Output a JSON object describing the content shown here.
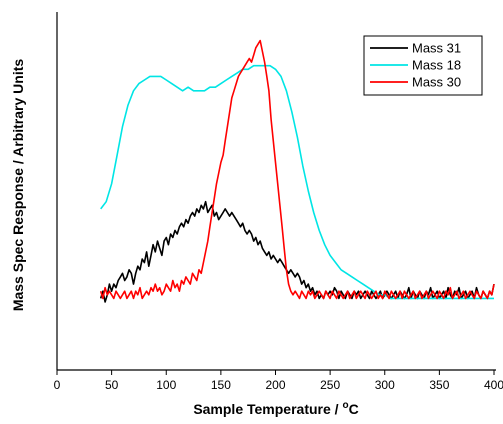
{
  "chart_data": {
    "type": "line",
    "xlabel": "Sample Temperature / °C",
    "xlabel_parts": {
      "pre": "Sample Temperature / ",
      "sup": "o",
      "post": "C"
    },
    "ylabel": "Mass Spec Response / Arbitrary Units",
    "xlim": [
      0,
      400
    ],
    "ylim": [
      0,
      100
    ],
    "xticks": [
      "0",
      "50",
      "100",
      "150",
      "200",
      "250",
      "300",
      "350",
      "400"
    ],
    "y_tick_labels_shown": false,
    "grid": false,
    "legend_position": "top-right",
    "series": [
      {
        "name": "Mass 31",
        "color": "#000000",
        "x": [
          40,
          42,
          44,
          46,
          48,
          50,
          52,
          54,
          56,
          58,
          60,
          62,
          64,
          66,
          68,
          70,
          72,
          74,
          76,
          78,
          80,
          82,
          84,
          86,
          88,
          90,
          92,
          94,
          96,
          98,
          100,
          102,
          104,
          106,
          108,
          110,
          112,
          114,
          116,
          118,
          120,
          122,
          124,
          126,
          128,
          130,
          132,
          134,
          136,
          138,
          140,
          142,
          144,
          146,
          148,
          150,
          152,
          154,
          156,
          158,
          160,
          162,
          164,
          166,
          168,
          170,
          172,
          174,
          176,
          178,
          180,
          182,
          184,
          186,
          188,
          190,
          192,
          194,
          196,
          198,
          200,
          202,
          204,
          206,
          208,
          210,
          212,
          214,
          216,
          218,
          220,
          222,
          224,
          226,
          228,
          230,
          232,
          234,
          236,
          238,
          240,
          242,
          244,
          246,
          248,
          250,
          252,
          254,
          256,
          258,
          260,
          262,
          264,
          266,
          268,
          270,
          272,
          274,
          276,
          278,
          280,
          282,
          284,
          286,
          288,
          290,
          292,
          294,
          296,
          298,
          300,
          302,
          304,
          306,
          308,
          310,
          312,
          314,
          316,
          318,
          320,
          322,
          324,
          326,
          328,
          330,
          332,
          334,
          336,
          338,
          340,
          342,
          344,
          346,
          348,
          350,
          352,
          354,
          356,
          358,
          360,
          362,
          364,
          366,
          368,
          370,
          372,
          374,
          376,
          378,
          380,
          382,
          384,
          386,
          388,
          390,
          392,
          394,
          396,
          398,
          400
        ],
        "y": [
          20,
          22,
          19,
          21,
          24,
          22,
          24,
          23,
          25,
          26,
          27,
          25,
          26,
          28,
          27,
          24,
          27,
          29,
          28,
          31,
          30,
          33,
          29,
          32,
          35,
          33,
          36,
          34,
          32,
          36,
          37,
          35,
          38,
          37,
          39,
          38,
          40,
          41,
          40,
          42,
          41,
          43,
          44,
          43,
          45,
          44,
          46,
          45,
          47,
          44,
          45,
          46,
          43,
          44,
          42,
          43,
          44,
          45,
          44,
          43,
          44,
          43,
          42,
          41,
          40,
          41,
          39,
          38,
          39,
          38,
          36,
          37,
          35,
          36,
          34,
          33,
          32,
          33,
          31,
          32,
          31,
          30,
          31,
          30,
          29,
          28,
          27,
          28,
          27,
          26,
          27,
          26,
          24,
          25,
          23,
          24,
          22,
          23,
          21,
          22,
          20,
          21,
          20,
          22,
          21,
          22,
          21,
          23,
          22,
          20,
          22,
          21,
          20,
          22,
          21,
          20,
          22,
          21,
          22,
          20,
          21,
          22,
          21,
          20,
          22,
          21,
          20,
          21,
          22,
          20,
          21,
          22,
          21,
          20,
          21,
          22,
          20,
          22,
          21,
          20,
          21,
          23,
          20,
          22,
          21,
          20,
          22,
          21,
          20,
          22,
          21,
          23,
          20,
          21,
          22,
          20,
          21,
          22,
          20,
          23,
          21,
          20,
          22,
          21,
          23,
          20,
          21,
          22,
          20,
          21,
          22,
          20,
          23,
          21,
          20,
          22,
          21,
          20,
          22,
          21,
          24
        ]
      },
      {
        "name": "Mass 18",
        "color": "#00e5e5",
        "x": [
          40,
          45,
          50,
          55,
          60,
          65,
          70,
          75,
          80,
          85,
          90,
          95,
          100,
          105,
          110,
          115,
          120,
          125,
          130,
          135,
          140,
          145,
          150,
          155,
          160,
          165,
          170,
          175,
          180,
          185,
          190,
          195,
          200,
          205,
          210,
          215,
          220,
          225,
          230,
          235,
          240,
          245,
          250,
          255,
          260,
          265,
          270,
          275,
          280,
          285,
          290,
          295,
          300,
          305,
          310,
          315,
          320,
          325,
          330,
          335,
          340,
          345,
          350,
          355,
          360,
          365,
          370,
          375,
          380,
          385,
          390,
          395,
          400
        ],
        "y": [
          45,
          47,
          52,
          60,
          68,
          74,
          78,
          80,
          81,
          82,
          82,
          82,
          81,
          80,
          79,
          78,
          79,
          78,
          78,
          78,
          79,
          79,
          80,
          81,
          82,
          83,
          84,
          84,
          85,
          85,
          85,
          85,
          84,
          82,
          78,
          72,
          65,
          57,
          50,
          44,
          39,
          35,
          32,
          30,
          28,
          27,
          26,
          25,
          24,
          23,
          22,
          21,
          21,
          20,
          20,
          20,
          20,
          20,
          20,
          20,
          20,
          20,
          20,
          20,
          20,
          20,
          20,
          20,
          20,
          20,
          20,
          20,
          20
        ]
      },
      {
        "name": "Mass 30",
        "color": "#ff0000",
        "x": [
          40,
          42,
          44,
          46,
          48,
          50,
          52,
          54,
          56,
          58,
          60,
          62,
          64,
          66,
          68,
          70,
          72,
          74,
          76,
          78,
          80,
          82,
          84,
          86,
          88,
          90,
          92,
          94,
          96,
          98,
          100,
          102,
          104,
          106,
          108,
          110,
          112,
          114,
          116,
          118,
          120,
          122,
          124,
          126,
          128,
          130,
          132,
          134,
          136,
          138,
          140,
          142,
          144,
          146,
          148,
          150,
          152,
          154,
          156,
          158,
          160,
          162,
          164,
          166,
          168,
          170,
          172,
          174,
          176,
          178,
          180,
          182,
          184,
          186,
          188,
          190,
          192,
          194,
          196,
          198,
          200,
          202,
          204,
          206,
          208,
          210,
          212,
          214,
          216,
          218,
          220,
          222,
          224,
          226,
          228,
          230,
          232,
          234,
          236,
          238,
          240,
          242,
          244,
          246,
          248,
          250,
          252,
          254,
          256,
          258,
          260,
          262,
          264,
          266,
          268,
          270,
          272,
          274,
          276,
          278,
          280,
          282,
          284,
          286,
          288,
          290,
          292,
          294,
          296,
          298,
          300,
          302,
          304,
          306,
          308,
          310,
          312,
          314,
          316,
          318,
          320,
          322,
          324,
          326,
          328,
          330,
          332,
          334,
          336,
          338,
          340,
          342,
          344,
          346,
          348,
          350,
          352,
          354,
          356,
          358,
          360,
          362,
          364,
          366,
          368,
          370,
          372,
          374,
          376,
          378,
          380,
          382,
          384,
          386,
          388,
          390,
          392,
          394,
          396,
          398,
          400
        ],
        "y": [
          22,
          20,
          23,
          21,
          22,
          21,
          20,
          22,
          21,
          20,
          21,
          22,
          20,
          21,
          22,
          20,
          22,
          21,
          23,
          20,
          21,
          22,
          21,
          23,
          22,
          24,
          22,
          23,
          21,
          22,
          24,
          23,
          22,
          25,
          23,
          24,
          22,
          25,
          24,
          26,
          25,
          24,
          27,
          26,
          25,
          28,
          27,
          30,
          33,
          36,
          40,
          44,
          48,
          52,
          55,
          58,
          60,
          64,
          68,
          72,
          76,
          78,
          80,
          82,
          83,
          84,
          85,
          86,
          87,
          86,
          88,
          90,
          91,
          92,
          89,
          86,
          82,
          78,
          70,
          64,
          58,
          52,
          46,
          40,
          34,
          28,
          24,
          22,
          21,
          22,
          21,
          20,
          22,
          21,
          20,
          22,
          21,
          22,
          20,
          21,
          22,
          21,
          20,
          22,
          21,
          20,
          22,
          21,
          20,
          22,
          21,
          20,
          21,
          22,
          20,
          21,
          22,
          20,
          21,
          22,
          21,
          20,
          22,
          21,
          20,
          21,
          22,
          20,
          21,
          20,
          22,
          21,
          20,
          22,
          21,
          20,
          21,
          22,
          20,
          22,
          21,
          20,
          21,
          22,
          20,
          21,
          22,
          20,
          21,
          22,
          20,
          21,
          22,
          21,
          20,
          22,
          21,
          20,
          22,
          21,
          23,
          20,
          21,
          22,
          20,
          21,
          22,
          20,
          21,
          22,
          21,
          20,
          22,
          21,
          20,
          22,
          21,
          20,
          22,
          21,
          24
        ]
      }
    ]
  }
}
